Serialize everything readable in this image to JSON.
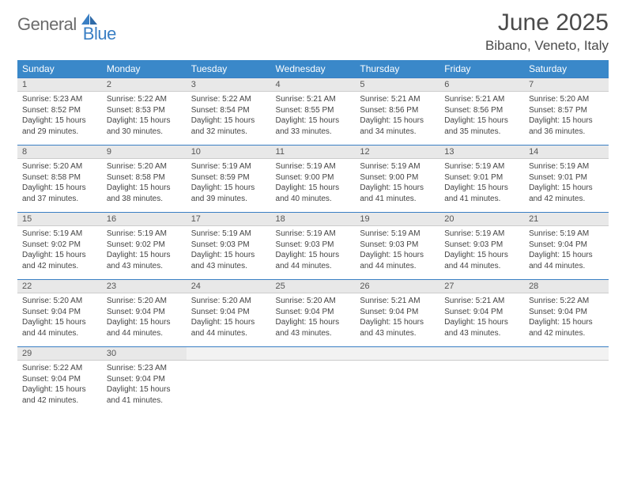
{
  "logo": {
    "text1": "General",
    "text2": "Blue"
  },
  "title": "June 2025",
  "location": "Bibano, Veneto, Italy",
  "colors": {
    "header_bg": "#3a88c9",
    "accent": "#3a7fc4",
    "text": "#333333",
    "daybar_bg": "#e8e8e8"
  },
  "weekdays": [
    "Sunday",
    "Monday",
    "Tuesday",
    "Wednesday",
    "Thursday",
    "Friday",
    "Saturday"
  ],
  "days": [
    {
      "n": "1",
      "sunrise": "Sunrise: 5:23 AM",
      "sunset": "Sunset: 8:52 PM",
      "day1": "Daylight: 15 hours",
      "day2": "and 29 minutes."
    },
    {
      "n": "2",
      "sunrise": "Sunrise: 5:22 AM",
      "sunset": "Sunset: 8:53 PM",
      "day1": "Daylight: 15 hours",
      "day2": "and 30 minutes."
    },
    {
      "n": "3",
      "sunrise": "Sunrise: 5:22 AM",
      "sunset": "Sunset: 8:54 PM",
      "day1": "Daylight: 15 hours",
      "day2": "and 32 minutes."
    },
    {
      "n": "4",
      "sunrise": "Sunrise: 5:21 AM",
      "sunset": "Sunset: 8:55 PM",
      "day1": "Daylight: 15 hours",
      "day2": "and 33 minutes."
    },
    {
      "n": "5",
      "sunrise": "Sunrise: 5:21 AM",
      "sunset": "Sunset: 8:56 PM",
      "day1": "Daylight: 15 hours",
      "day2": "and 34 minutes."
    },
    {
      "n": "6",
      "sunrise": "Sunrise: 5:21 AM",
      "sunset": "Sunset: 8:56 PM",
      "day1": "Daylight: 15 hours",
      "day2": "and 35 minutes."
    },
    {
      "n": "7",
      "sunrise": "Sunrise: 5:20 AM",
      "sunset": "Sunset: 8:57 PM",
      "day1": "Daylight: 15 hours",
      "day2": "and 36 minutes."
    },
    {
      "n": "8",
      "sunrise": "Sunrise: 5:20 AM",
      "sunset": "Sunset: 8:58 PM",
      "day1": "Daylight: 15 hours",
      "day2": "and 37 minutes."
    },
    {
      "n": "9",
      "sunrise": "Sunrise: 5:20 AM",
      "sunset": "Sunset: 8:58 PM",
      "day1": "Daylight: 15 hours",
      "day2": "and 38 minutes."
    },
    {
      "n": "10",
      "sunrise": "Sunrise: 5:19 AM",
      "sunset": "Sunset: 8:59 PM",
      "day1": "Daylight: 15 hours",
      "day2": "and 39 minutes."
    },
    {
      "n": "11",
      "sunrise": "Sunrise: 5:19 AM",
      "sunset": "Sunset: 9:00 PM",
      "day1": "Daylight: 15 hours",
      "day2": "and 40 minutes."
    },
    {
      "n": "12",
      "sunrise": "Sunrise: 5:19 AM",
      "sunset": "Sunset: 9:00 PM",
      "day1": "Daylight: 15 hours",
      "day2": "and 41 minutes."
    },
    {
      "n": "13",
      "sunrise": "Sunrise: 5:19 AM",
      "sunset": "Sunset: 9:01 PM",
      "day1": "Daylight: 15 hours",
      "day2": "and 41 minutes."
    },
    {
      "n": "14",
      "sunrise": "Sunrise: 5:19 AM",
      "sunset": "Sunset: 9:01 PM",
      "day1": "Daylight: 15 hours",
      "day2": "and 42 minutes."
    },
    {
      "n": "15",
      "sunrise": "Sunrise: 5:19 AM",
      "sunset": "Sunset: 9:02 PM",
      "day1": "Daylight: 15 hours",
      "day2": "and 42 minutes."
    },
    {
      "n": "16",
      "sunrise": "Sunrise: 5:19 AM",
      "sunset": "Sunset: 9:02 PM",
      "day1": "Daylight: 15 hours",
      "day2": "and 43 minutes."
    },
    {
      "n": "17",
      "sunrise": "Sunrise: 5:19 AM",
      "sunset": "Sunset: 9:03 PM",
      "day1": "Daylight: 15 hours",
      "day2": "and 43 minutes."
    },
    {
      "n": "18",
      "sunrise": "Sunrise: 5:19 AM",
      "sunset": "Sunset: 9:03 PM",
      "day1": "Daylight: 15 hours",
      "day2": "and 44 minutes."
    },
    {
      "n": "19",
      "sunrise": "Sunrise: 5:19 AM",
      "sunset": "Sunset: 9:03 PM",
      "day1": "Daylight: 15 hours",
      "day2": "and 44 minutes."
    },
    {
      "n": "20",
      "sunrise": "Sunrise: 5:19 AM",
      "sunset": "Sunset: 9:03 PM",
      "day1": "Daylight: 15 hours",
      "day2": "and 44 minutes."
    },
    {
      "n": "21",
      "sunrise": "Sunrise: 5:19 AM",
      "sunset": "Sunset: 9:04 PM",
      "day1": "Daylight: 15 hours",
      "day2": "and 44 minutes."
    },
    {
      "n": "22",
      "sunrise": "Sunrise: 5:20 AM",
      "sunset": "Sunset: 9:04 PM",
      "day1": "Daylight: 15 hours",
      "day2": "and 44 minutes."
    },
    {
      "n": "23",
      "sunrise": "Sunrise: 5:20 AM",
      "sunset": "Sunset: 9:04 PM",
      "day1": "Daylight: 15 hours",
      "day2": "and 44 minutes."
    },
    {
      "n": "24",
      "sunrise": "Sunrise: 5:20 AM",
      "sunset": "Sunset: 9:04 PM",
      "day1": "Daylight: 15 hours",
      "day2": "and 44 minutes."
    },
    {
      "n": "25",
      "sunrise": "Sunrise: 5:20 AM",
      "sunset": "Sunset: 9:04 PM",
      "day1": "Daylight: 15 hours",
      "day2": "and 43 minutes."
    },
    {
      "n": "26",
      "sunrise": "Sunrise: 5:21 AM",
      "sunset": "Sunset: 9:04 PM",
      "day1": "Daylight: 15 hours",
      "day2": "and 43 minutes."
    },
    {
      "n": "27",
      "sunrise": "Sunrise: 5:21 AM",
      "sunset": "Sunset: 9:04 PM",
      "day1": "Daylight: 15 hours",
      "day2": "and 43 minutes."
    },
    {
      "n": "28",
      "sunrise": "Sunrise: 5:22 AM",
      "sunset": "Sunset: 9:04 PM",
      "day1": "Daylight: 15 hours",
      "day2": "and 42 minutes."
    },
    {
      "n": "29",
      "sunrise": "Sunrise: 5:22 AM",
      "sunset": "Sunset: 9:04 PM",
      "day1": "Daylight: 15 hours",
      "day2": "and 42 minutes."
    },
    {
      "n": "30",
      "sunrise": "Sunrise: 5:23 AM",
      "sunset": "Sunset: 9:04 PM",
      "day1": "Daylight: 15 hours",
      "day2": "and 41 minutes."
    }
  ]
}
